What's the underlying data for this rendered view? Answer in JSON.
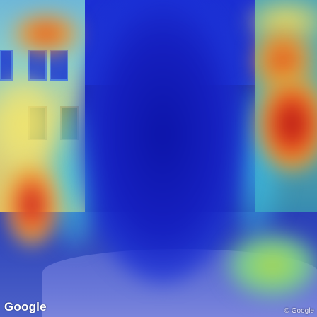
{
  "image": {
    "type": "street-view-attention-heatmap",
    "colormap": "jet",
    "colors": {
      "low": "#1a20b0",
      "mid": "#46c6e0",
      "high_mid": "#f2e46a",
      "high": "#b8101a"
    }
  },
  "watermarks": {
    "logo_text": "Google",
    "copyright_text": "© Google"
  }
}
